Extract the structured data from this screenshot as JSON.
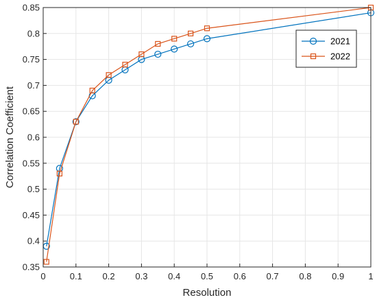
{
  "chart_data": {
    "type": "line",
    "xlabel": "Resolution",
    "ylabel": "Correlation Coefficient",
    "xlim": [
      0,
      1
    ],
    "ylim": [
      0.35,
      0.85
    ],
    "xticks": [
      "0",
      "0.1",
      "0.2",
      "0.3",
      "0.4",
      "0.5",
      "0.6",
      "0.7",
      "0.8",
      "0.9",
      "1"
    ],
    "yticks": [
      "0.35",
      "0.4",
      "0.45",
      "0.5",
      "0.55",
      "0.6",
      "0.65",
      "0.7",
      "0.75",
      "0.8",
      "0.85"
    ],
    "grid": true,
    "legend_position": "top-right",
    "x": [
      0.01,
      0.05,
      0.1,
      0.15,
      0.2,
      0.25,
      0.3,
      0.35,
      0.4,
      0.45,
      0.5,
      1.0
    ],
    "series": [
      {
        "name": "2021",
        "marker": "circle",
        "color": "#0072BD",
        "values": [
          0.39,
          0.54,
          0.63,
          0.68,
          0.71,
          0.73,
          0.75,
          0.76,
          0.77,
          0.78,
          0.79,
          0.84
        ]
      },
      {
        "name": "2022",
        "marker": "square",
        "color": "#D95319",
        "values": [
          0.36,
          0.53,
          0.63,
          0.69,
          0.72,
          0.74,
          0.76,
          0.78,
          0.79,
          0.8,
          0.81,
          0.85
        ]
      }
    ]
  }
}
